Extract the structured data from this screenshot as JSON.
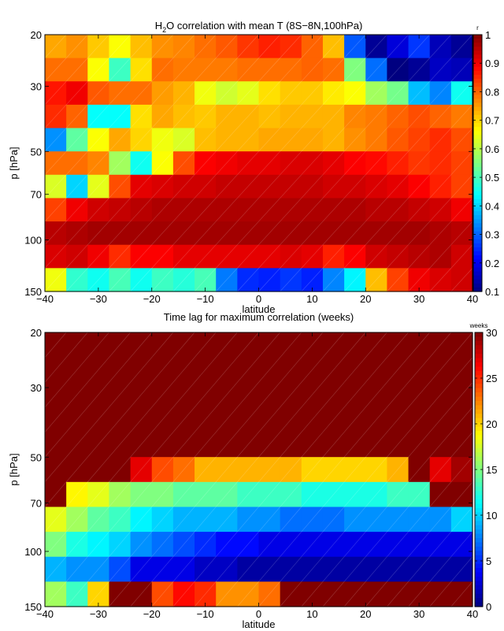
{
  "chart_data": [
    {
      "type": "heatmap",
      "title": "H$_2$O correlation with mean T (8S−8N,100hPa)",
      "title_parts": {
        "pre": "H",
        "sub": "2",
        "post": "O correlation with mean T (8S−8N,100hPa)"
      },
      "xlabel": "latitude",
      "ylabel": "p [hPa]",
      "xlim": [
        -40,
        40
      ],
      "ylim": [
        150,
        20
      ],
      "yscale": "log",
      "xticks": [
        -40,
        -30,
        -20,
        -10,
        0,
        10,
        20,
        30,
        40
      ],
      "xtick_labels": [
        "−40",
        "−30",
        "−20",
        "−10",
        "0",
        "10",
        "20",
        "30",
        "40"
      ],
      "yticks": [
        20,
        30,
        50,
        70,
        100,
        150
      ],
      "colorbar": {
        "label": "r",
        "min": 0.1,
        "max": 1,
        "ticks": [
          0.1,
          0.2,
          0.3,
          0.4,
          0.5,
          0.6,
          0.7,
          0.8,
          0.9,
          1
        ]
      },
      "grid": false,
      "values": [
        [
          0.74,
          0.76,
          0.71,
          0.66,
          0.72,
          0.76,
          0.77,
          0.79,
          0.81,
          0.84,
          0.86,
          0.85,
          0.8,
          0.72,
          0.29,
          0.12,
          0.18,
          0.26,
          0.15,
          0.12
        ],
        [
          0.79,
          0.79,
          0.66,
          0.49,
          0.69,
          0.79,
          0.78,
          0.78,
          0.78,
          0.79,
          0.79,
          0.79,
          0.8,
          0.79,
          0.55,
          0.31,
          0.09,
          0.12,
          0.16,
          0.15
        ],
        [
          0.87,
          0.9,
          0.81,
          0.79,
          0.79,
          0.75,
          0.73,
          0.65,
          0.62,
          0.64,
          0.69,
          0.71,
          0.71,
          0.68,
          0.66,
          0.58,
          0.54,
          0.38,
          0.33,
          0.45
        ],
        [
          0.85,
          0.8,
          0.44,
          0.44,
          0.69,
          0.74,
          0.72,
          0.71,
          0.73,
          0.73,
          0.72,
          0.73,
          0.73,
          0.73,
          0.77,
          0.78,
          0.8,
          0.82,
          0.8,
          0.78
        ],
        [
          0.34,
          0.52,
          0.66,
          0.74,
          0.7,
          0.65,
          0.63,
          0.72,
          0.73,
          0.73,
          0.74,
          0.74,
          0.74,
          0.73,
          0.76,
          0.78,
          0.81,
          0.83,
          0.85,
          0.82
        ],
        [
          0.79,
          0.79,
          0.77,
          0.58,
          0.45,
          0.66,
          0.82,
          0.89,
          0.9,
          0.91,
          0.91,
          0.92,
          0.92,
          0.91,
          0.89,
          0.88,
          0.86,
          0.84,
          0.85,
          0.83
        ],
        [
          0.63,
          0.4,
          0.64,
          0.82,
          0.91,
          0.92,
          0.93,
          0.93,
          0.94,
          0.94,
          0.94,
          0.94,
          0.94,
          0.93,
          0.93,
          0.92,
          0.91,
          0.89,
          0.86,
          0.83
        ],
        [
          0.83,
          0.9,
          0.93,
          0.94,
          0.95,
          0.96,
          0.96,
          0.96,
          0.96,
          0.96,
          0.96,
          0.96,
          0.96,
          0.96,
          0.96,
          0.95,
          0.95,
          0.94,
          0.93,
          0.9
        ],
        [
          0.95,
          0.96,
          0.97,
          0.97,
          0.97,
          0.97,
          0.97,
          0.97,
          0.97,
          0.97,
          0.97,
          0.97,
          0.97,
          0.97,
          0.97,
          0.97,
          0.97,
          0.97,
          0.96,
          0.95
        ],
        [
          0.92,
          0.93,
          0.9,
          0.85,
          0.89,
          0.89,
          0.91,
          0.91,
          0.91,
          0.91,
          0.91,
          0.92,
          0.91,
          0.86,
          0.89,
          0.93,
          0.94,
          0.95,
          0.96,
          0.93
        ],
        [
          0.65,
          0.48,
          0.45,
          0.5,
          0.45,
          0.49,
          0.47,
          0.5,
          0.32,
          0.25,
          0.24,
          0.26,
          0.24,
          0.33,
          0.43,
          0.72,
          0.83,
          0.9,
          0.92,
          0.93
        ]
      ]
    },
    {
      "type": "heatmap",
      "title": "Time lag for maximum correlation (weeks)",
      "xlabel": "latitude",
      "ylabel": "p [hPa]",
      "xlim": [
        -40,
        40
      ],
      "ylim": [
        150,
        20
      ],
      "yscale": "log",
      "xticks": [
        -40,
        -30,
        -20,
        -10,
        0,
        10,
        20,
        30,
        40
      ],
      "xtick_labels": [
        "−40",
        "−30",
        "−20",
        "−10",
        "0",
        "10",
        "20",
        "30",
        "40"
      ],
      "yticks": [
        20,
        30,
        50,
        70,
        100,
        150
      ],
      "colorbar": {
        "label": "weeks",
        "min": 0,
        "max": 30,
        "ticks": [
          0,
          5,
          10,
          15,
          20,
          25,
          30
        ]
      },
      "grid": false,
      "values": [
        [
          30,
          30,
          30,
          30,
          30,
          30,
          30,
          30,
          30,
          30,
          30,
          30,
          30,
          30,
          30,
          30,
          30,
          30,
          30,
          30
        ],
        [
          30,
          30,
          30,
          30,
          30,
          30,
          30,
          30,
          30,
          30,
          30,
          30,
          30,
          30,
          30,
          30,
          30,
          30,
          30,
          30
        ],
        [
          30,
          30,
          30,
          30,
          30,
          30,
          30,
          30,
          30,
          30,
          30,
          30,
          30,
          30,
          30,
          30,
          30,
          30,
          30,
          30
        ],
        [
          30,
          30,
          30,
          30,
          30,
          30,
          30,
          30,
          30,
          30,
          30,
          30,
          30,
          30,
          30,
          30,
          30,
          30,
          30,
          30
        ],
        [
          30,
          30,
          30,
          30,
          30,
          30,
          30,
          30,
          30,
          30,
          30,
          30,
          30,
          30,
          30,
          30,
          30,
          30,
          30,
          30
        ],
        [
          30,
          30,
          30,
          30,
          27,
          24,
          23,
          21,
          21,
          21,
          21,
          21,
          20,
          20,
          20,
          20,
          21,
          30,
          27,
          29
        ],
        [
          30,
          19,
          18,
          16,
          15,
          15,
          14,
          14,
          14,
          13,
          13,
          13,
          12,
          12,
          12,
          12,
          13,
          13,
          30,
          30
        ],
        [
          18,
          16,
          14,
          13,
          11,
          10,
          9,
          9,
          9,
          8,
          8,
          7,
          7,
          7,
          8,
          8,
          8,
          8,
          8,
          10
        ],
        [
          15,
          12,
          11,
          10,
          8,
          7,
          6,
          5,
          4,
          4,
          3,
          3,
          3,
          3,
          3,
          3,
          3,
          3,
          3,
          3
        ],
        [
          9,
          8,
          8,
          6,
          3,
          3,
          3,
          2,
          2,
          1,
          1,
          1,
          1,
          1,
          1,
          1,
          1,
          1,
          1,
          1
        ],
        [
          16,
          13,
          20,
          30,
          30,
          24,
          26,
          25,
          22,
          22,
          23,
          30,
          30,
          30,
          30,
          30,
          30,
          30,
          30,
          30
        ]
      ]
    }
  ]
}
